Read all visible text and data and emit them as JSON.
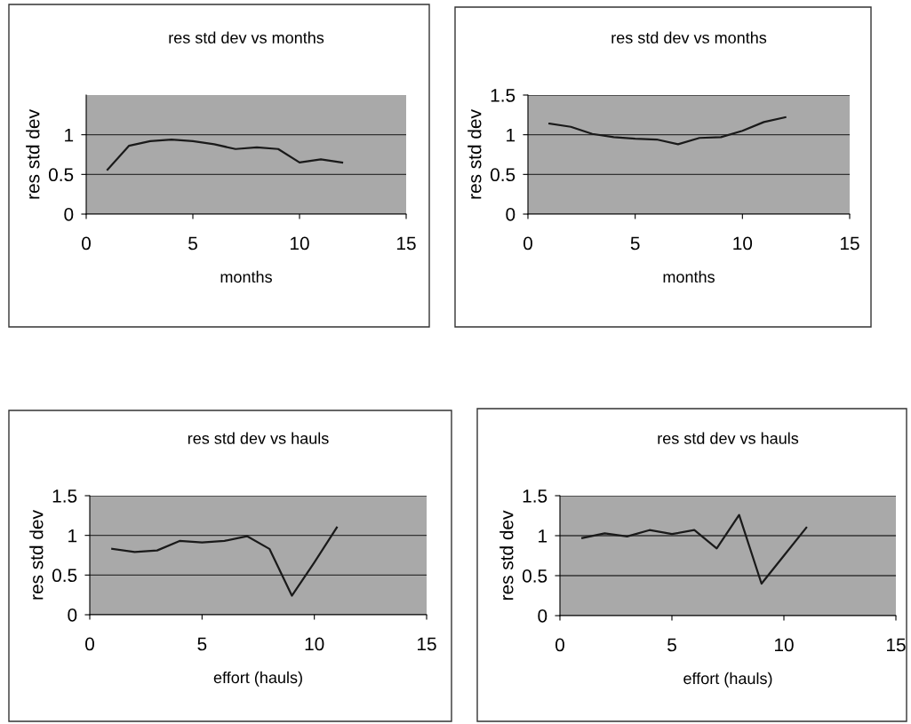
{
  "chart_data": [
    {
      "type": "line",
      "title": "res std dev vs months",
      "xlabel": "months",
      "ylabel": "res std dev",
      "x": [
        1,
        2,
        3,
        4,
        5,
        6,
        7,
        8,
        9,
        10,
        11,
        12
      ],
      "series": [
        {
          "color": "#1a1a1a",
          "values": [
            0.56,
            0.86,
            0.92,
            0.94,
            0.92,
            0.88,
            0.82,
            0.84,
            0.82,
            0.65,
            0.69,
            0.65
          ]
        }
      ],
      "xlim": [
        0,
        15
      ],
      "xticks": [
        0,
        5,
        10,
        15
      ],
      "ylim": [
        0,
        1.5
      ],
      "yticks": [
        0,
        0.5,
        1
      ],
      "grid": "y"
    },
    {
      "type": "line",
      "title": "res std dev vs months",
      "xlabel": "months",
      "ylabel": "res std dev",
      "x": [
        1,
        2,
        3,
        4,
        5,
        6,
        7,
        8,
        9,
        10,
        11,
        12
      ],
      "series": [
        {
          "color": "#1a1a1a",
          "values": [
            1.14,
            1.1,
            1.01,
            0.97,
            0.95,
            0.94,
            0.88,
            0.96,
            0.97,
            1.05,
            1.16,
            1.22
          ]
        }
      ],
      "xlim": [
        0,
        15
      ],
      "xticks": [
        0,
        5,
        10,
        15
      ],
      "ylim": [
        0,
        1.5
      ],
      "yticks": [
        0,
        0.5,
        1,
        1.5
      ],
      "grid": "y"
    },
    {
      "type": "line",
      "title": "res std dev vs hauls",
      "xlabel": "effort (hauls)",
      "ylabel": "res std dev",
      "x": [
        1,
        2,
        3,
        4,
        5,
        6,
        7,
        8,
        9,
        10,
        11
      ],
      "series": [
        {
          "color": "#1a1a1a",
          "values": [
            0.83,
            0.79,
            0.81,
            0.93,
            0.91,
            0.93,
            0.99,
            0.83,
            0.24,
            0.66,
            1.1
          ]
        }
      ],
      "xlim": [
        0,
        15
      ],
      "xticks": [
        0,
        5,
        10,
        15
      ],
      "ylim": [
        0,
        1.5
      ],
      "yticks": [
        0,
        0.5,
        1,
        1.5
      ],
      "grid": "y"
    },
    {
      "type": "line",
      "title": "res std dev vs hauls",
      "xlabel": "effort (hauls)",
      "ylabel": "res std dev",
      "x": [
        1,
        2,
        3,
        4,
        5,
        6,
        7,
        8,
        9,
        10,
        11
      ],
      "series": [
        {
          "color": "#1a1a1a",
          "values": [
            0.97,
            1.03,
            0.99,
            1.07,
            1.02,
            1.07,
            0.84,
            1.26,
            0.4,
            0.75,
            1.1
          ]
        }
      ],
      "xlim": [
        0,
        15
      ],
      "xticks": [
        0,
        5,
        10,
        15
      ],
      "ylim": [
        0,
        1.5
      ],
      "yticks": [
        0,
        0.5,
        1,
        1.5
      ],
      "grid": "y"
    }
  ]
}
